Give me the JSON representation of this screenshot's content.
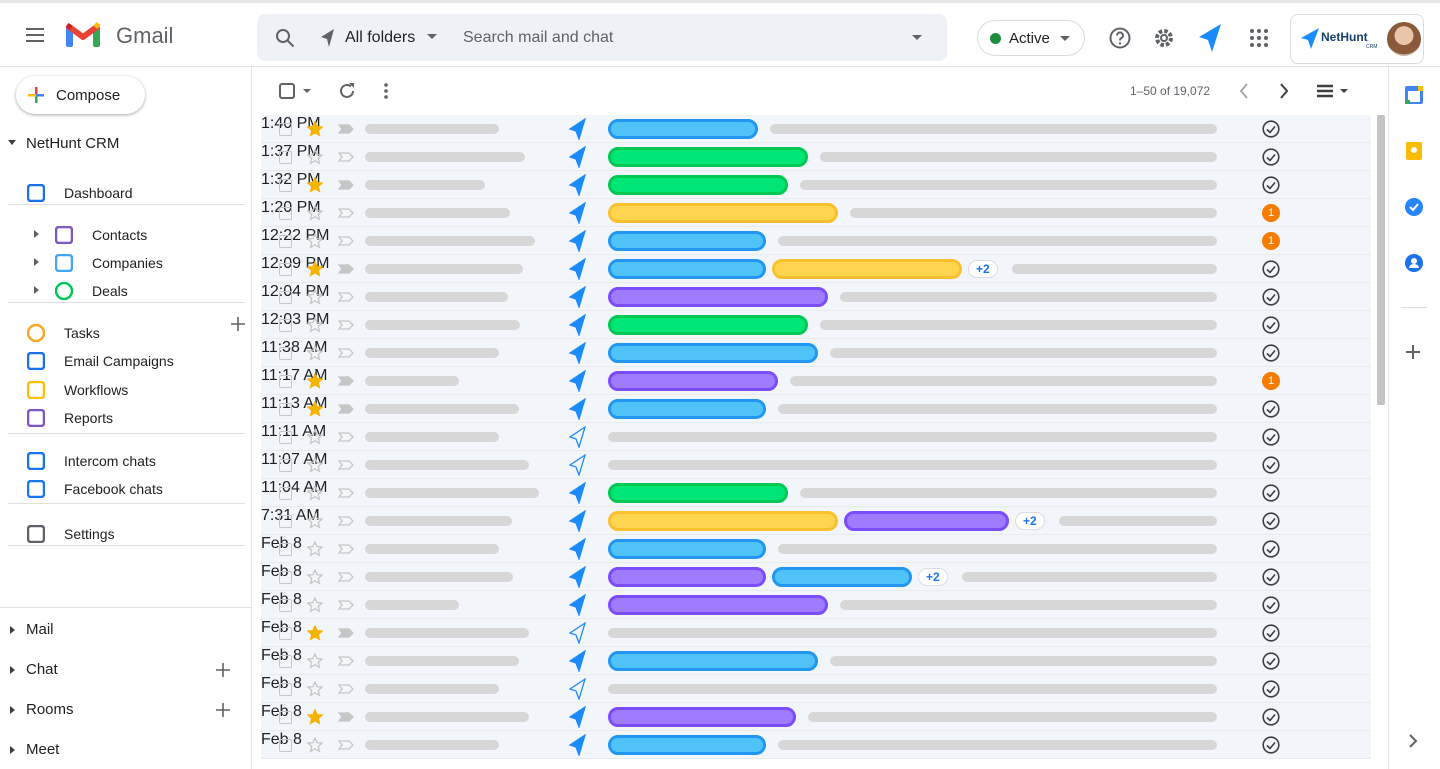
{
  "header": {
    "app_name": "Gmail",
    "folder": "All folders",
    "search_placeholder": "Search mail and chat",
    "status": "Active",
    "brand": "NetHunt",
    "brand_sub": "CRM"
  },
  "sidebar": {
    "compose": "Compose",
    "section": "NetHunt CRM",
    "items": [
      "Dashboard",
      "Contacts",
      "Companies",
      "Deals",
      "Tasks",
      "Email Campaigns",
      "Workflows",
      "Reports",
      "Intercom chats",
      "Facebook chats",
      "Settings"
    ],
    "bottom": [
      "Mail",
      "Chat",
      "Rooms",
      "Meet"
    ]
  },
  "toolbar": {
    "range": "1–50 of 19,072"
  },
  "rows": [
    {
      "starred": true,
      "tags": [
        "blue"
      ],
      "status": "check",
      "time": "1:40 PM"
    },
    {
      "starred": false,
      "tags": [
        "green"
      ],
      "status": "check",
      "time": "1:37 PM"
    },
    {
      "starred": true,
      "tags": [
        "green"
      ],
      "status": "check",
      "time": "1:32 PM"
    },
    {
      "starred": false,
      "tags": [
        "yellow"
      ],
      "status": "1",
      "time": "1:20 PM"
    },
    {
      "starred": false,
      "tags": [
        "blue"
      ],
      "status": "1",
      "time": "12:22 PM"
    },
    {
      "starred": true,
      "tags": [
        "blue",
        "yellow"
      ],
      "more": "+2",
      "status": "check",
      "time": "12:09 PM"
    },
    {
      "starred": false,
      "tags": [
        "purple"
      ],
      "status": "check",
      "time": "12:04 PM"
    },
    {
      "starred": false,
      "tags": [
        "green"
      ],
      "status": "check",
      "time": "12:03 PM"
    },
    {
      "starred": false,
      "tags": [
        "blue"
      ],
      "status": "check",
      "time": "11:38 AM"
    },
    {
      "starred": true,
      "tags": [
        "purple"
      ],
      "status": "1",
      "time": "11:17 AM"
    },
    {
      "starred": true,
      "tags": [
        "blue"
      ],
      "status": "check",
      "time": "11:13 AM"
    },
    {
      "starred": false,
      "tags": [],
      "status": "check",
      "time": "11:11 AM"
    },
    {
      "starred": false,
      "tags": [],
      "status": "check",
      "time": "11:07 AM"
    },
    {
      "starred": false,
      "tags": [
        "green"
      ],
      "status": "check",
      "time": "11:04 AM"
    },
    {
      "starred": false,
      "tags": [
        "yellow",
        "purple"
      ],
      "more": "+2",
      "status": "check",
      "time": "7:31 AM"
    },
    {
      "starred": false,
      "tags": [
        "blue"
      ],
      "status": "check",
      "time": "Feb 8"
    },
    {
      "starred": false,
      "tags": [
        "purple",
        "blue"
      ],
      "more": "+2",
      "status": "check",
      "time": "Feb 8"
    },
    {
      "starred": false,
      "tags": [
        "purple"
      ],
      "status": "check",
      "time": "Feb 8"
    },
    {
      "starred": true,
      "tags": [],
      "status": "check",
      "time": "Feb 8"
    },
    {
      "starred": false,
      "tags": [
        "blue"
      ],
      "status": "check",
      "time": "Feb 8"
    },
    {
      "starred": false,
      "tags": [],
      "status": "check",
      "time": "Feb 8"
    },
    {
      "starred": true,
      "tags": [
        "purple"
      ],
      "status": "check",
      "time": "Feb 8"
    },
    {
      "starred": false,
      "tags": [
        "blue"
      ],
      "status": "check",
      "time": "Feb 8"
    }
  ]
}
